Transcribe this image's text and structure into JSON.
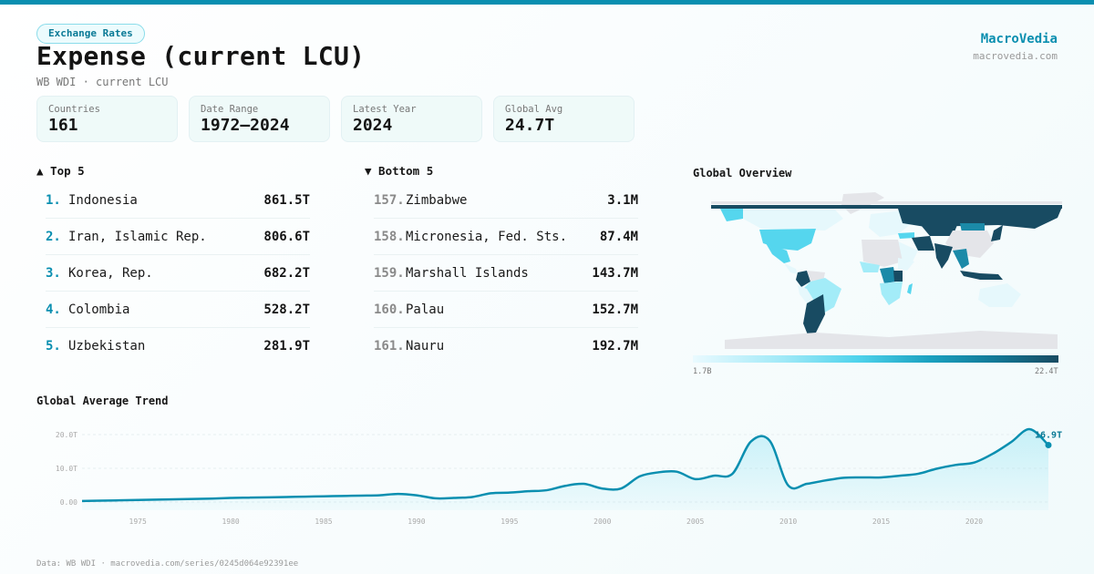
{
  "header": {
    "category_badge": "Exchange Rates",
    "title": "Expense (current LCU)",
    "subtitle": "WB WDI · current LCU",
    "brand_name": "MacroVedia",
    "brand_url": "macrovedia.com"
  },
  "stats": [
    {
      "label": "Countries",
      "value": "161"
    },
    {
      "label": "Date Range",
      "value": "1972–2024"
    },
    {
      "label": "Latest Year",
      "value": "2024"
    },
    {
      "label": "Global Avg",
      "value": "24.7T"
    }
  ],
  "top5": {
    "title": "▲ Top 5",
    "rows": [
      {
        "rank": "1.",
        "name": "Indonesia",
        "value": "861.5T"
      },
      {
        "rank": "2.",
        "name": "Iran, Islamic Rep.",
        "value": "806.6T"
      },
      {
        "rank": "3.",
        "name": "Korea, Rep.",
        "value": "682.2T"
      },
      {
        "rank": "4.",
        "name": "Colombia",
        "value": "528.2T"
      },
      {
        "rank": "5.",
        "name": "Uzbekistan",
        "value": "281.9T"
      }
    ]
  },
  "bottom5": {
    "title": "▼ Bottom 5",
    "rows": [
      {
        "rank": "157.",
        "name": "Zimbabwe",
        "value": "3.1M"
      },
      {
        "rank": "158.",
        "name": "Micronesia, Fed. Sts.",
        "value": "87.4M"
      },
      {
        "rank": "159.",
        "name": "Marshall Islands",
        "value": "143.7M"
      },
      {
        "rank": "160.",
        "name": "Palau",
        "value": "152.7M"
      },
      {
        "rank": "161.",
        "name": "Nauru",
        "value": "192.7M"
      }
    ]
  },
  "map": {
    "title": "Global Overview",
    "legend_min": "1.7B",
    "legend_max": "22.4T",
    "colors": {
      "none": "#e4e5e9",
      "low": "#e6f8fc",
      "light": "#a3ecf8",
      "mid": "#55d6ee",
      "high": "#1b8aa8",
      "top": "#184b62"
    }
  },
  "trend": {
    "title": "Global Average Trend",
    "end_label": "16.9T",
    "line_color": "#0a8fb0"
  },
  "footer": {
    "source": "Data: WB WDI · macrovedia.com/series/0245d064e92391ee"
  },
  "chart_data": {
    "type": "line",
    "title": "Global Average Trend",
    "xlabel": "",
    "ylabel": "",
    "ylim": [
      0,
      22
    ],
    "yticks": [
      "0.00",
      "10.0T",
      "20.0T"
    ],
    "xticks": [
      "1975",
      "1980",
      "1985",
      "1990",
      "1995",
      "2000",
      "2005",
      "2010",
      "2015",
      "2020"
    ],
    "grid": true,
    "x": [
      1972,
      1973,
      1974,
      1975,
      1976,
      1977,
      1978,
      1979,
      1980,
      1981,
      1982,
      1983,
      1984,
      1985,
      1986,
      1987,
      1988,
      1989,
      1990,
      1991,
      1992,
      1993,
      1994,
      1995,
      1996,
      1997,
      1998,
      1999,
      2000,
      2001,
      2002,
      2003,
      2004,
      2005,
      2006,
      2007,
      2008,
      2009,
      2010,
      2011,
      2012,
      2013,
      2014,
      2015,
      2016,
      2017,
      2018,
      2019,
      2020,
      2021,
      2022,
      2023,
      2024
    ],
    "series": [
      {
        "name": "Global Average (T, current LCU)",
        "values": [
          0.3,
          0.4,
          0.5,
          0.6,
          0.7,
          0.8,
          0.9,
          1.0,
          1.2,
          1.3,
          1.4,
          1.5,
          1.6,
          1.7,
          1.8,
          1.9,
          2.0,
          2.4,
          2.0,
          1.1,
          1.2,
          1.5,
          2.6,
          2.8,
          3.2,
          3.5,
          4.8,
          5.4,
          4.0,
          4.0,
          7.6,
          8.8,
          9.0,
          6.8,
          7.8,
          8.4,
          18.0,
          18.2,
          4.9,
          5.4,
          6.4,
          7.2,
          7.3,
          7.3,
          7.8,
          8.4,
          9.9,
          11.0,
          11.7,
          14.3,
          17.8,
          21.6,
          16.9
        ]
      }
    ],
    "annotations": [
      {
        "x": 2024,
        "y": 16.9,
        "text": "16.9T"
      }
    ]
  }
}
